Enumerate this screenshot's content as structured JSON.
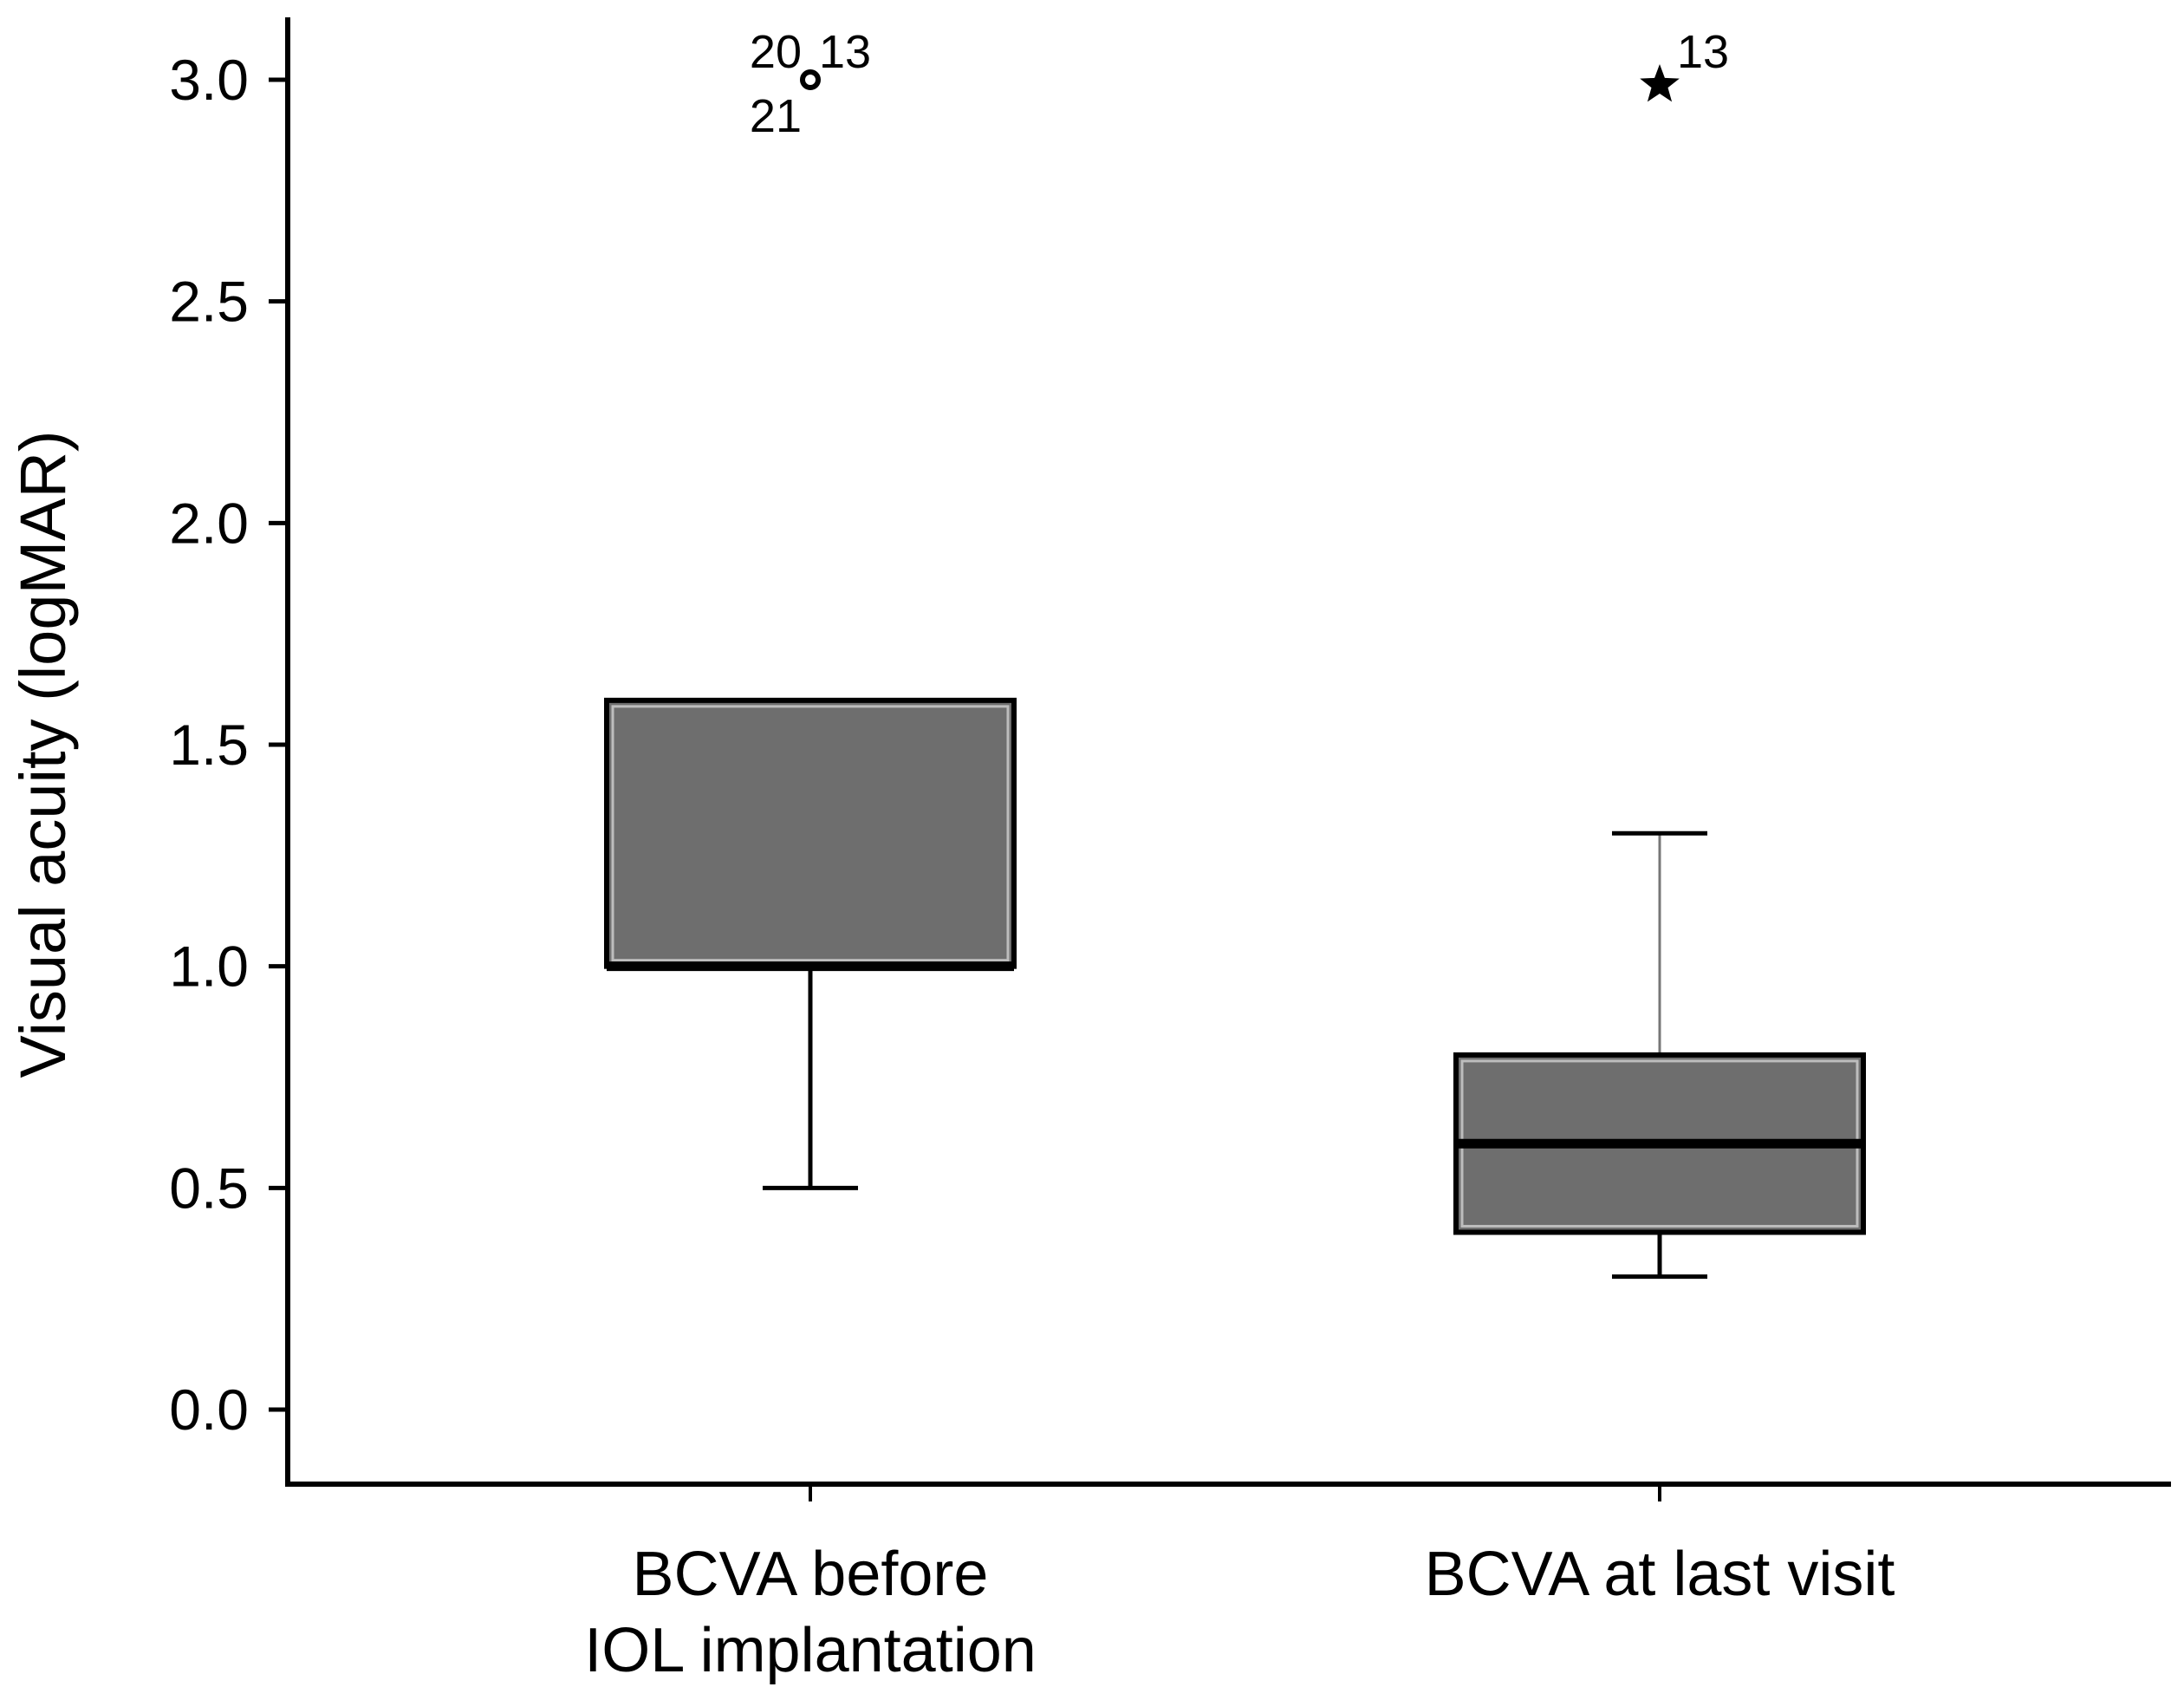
{
  "chart_data": {
    "type": "box",
    "title": "",
    "xlabel": "",
    "ylabel": "Visual acuity (logMAR)",
    "ylim": [
      -0.15,
      3.15
    ],
    "yticks": [
      0.0,
      0.5,
      1.0,
      1.5,
      2.0,
      2.5,
      3.0
    ],
    "ytick_labels": [
      "0.0",
      "0.5",
      "1.0",
      "1.5",
      "2.0",
      "2.5",
      "3.0"
    ],
    "grid": false,
    "legend": "none",
    "box_color": "#6e6e6e",
    "categories": [
      {
        "lines": [
          "BCVA before",
          "IOL implantation"
        ]
      },
      {
        "lines": [
          "BCVA at last visit"
        ]
      }
    ],
    "boxes": [
      {
        "whisker_low": 0.5,
        "q1": 1.0,
        "median": 1.0,
        "q3": 1.6,
        "whisker_high": 1.6,
        "outliers": [
          {
            "value": 3.0,
            "marker": "circle",
            "labels": [
              "20",
              "13",
              "21"
            ]
          }
        ]
      },
      {
        "whisker_low": 0.3,
        "q1": 0.4,
        "median": 0.6,
        "q3": 0.8,
        "whisker_high": 1.3,
        "outliers": [
          {
            "value": 3.0,
            "marker": "star",
            "labels": [
              "13"
            ]
          }
        ]
      }
    ]
  }
}
